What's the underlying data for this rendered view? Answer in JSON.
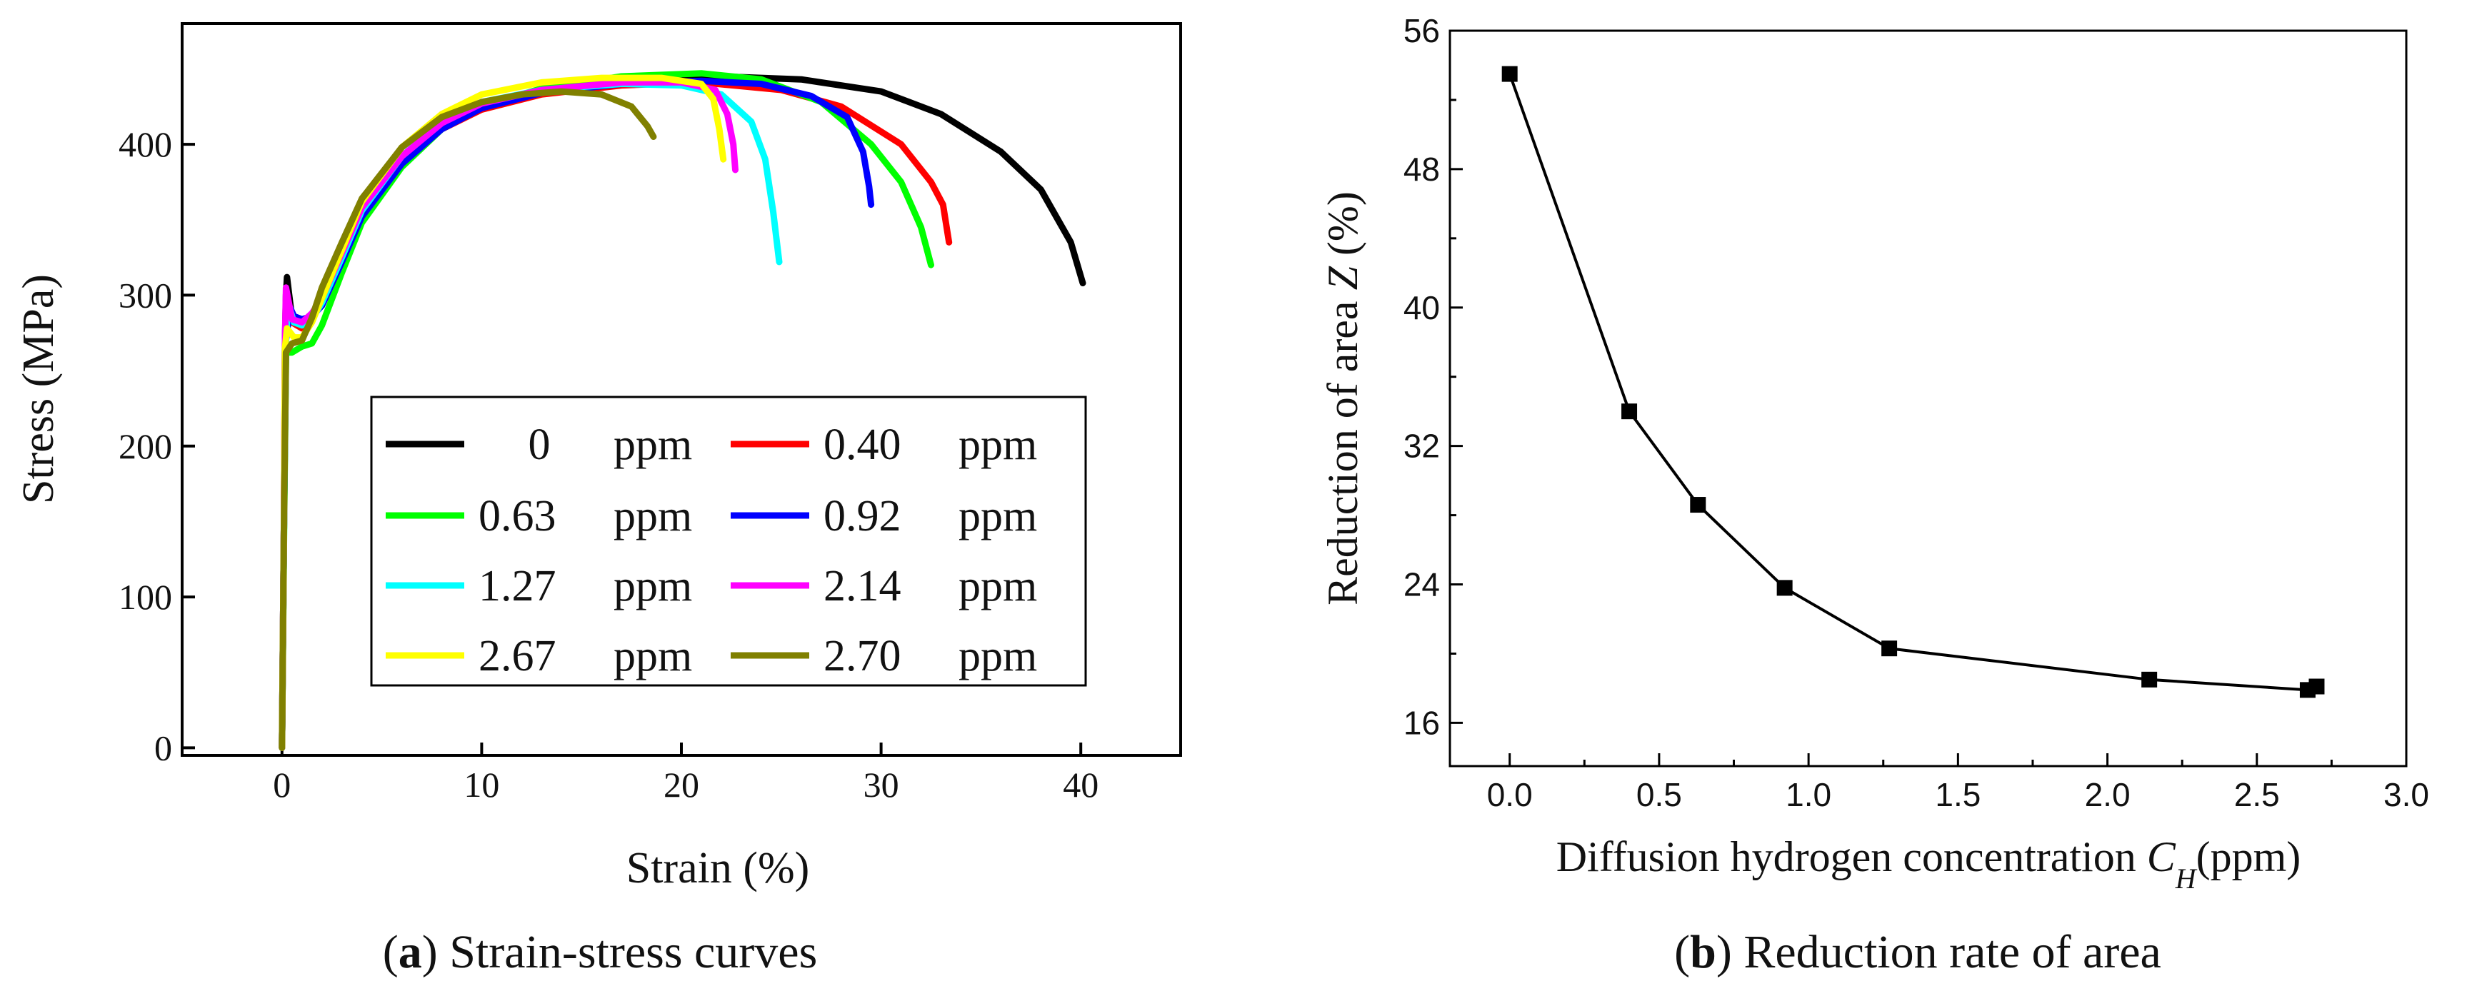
{
  "captions": {
    "a_letter": "a",
    "a_text": " Strain-stress curves",
    "b_letter": "b",
    "b_text": " Reduction rate of area"
  },
  "chart_data": [
    {
      "type": "line",
      "panel": "a",
      "title": "",
      "xlabel": "Strain (%)",
      "ylabel": "Stress (MPa)",
      "xlim": [
        -5,
        45
      ],
      "ylim": [
        -5,
        480
      ],
      "xticks": [
        0,
        10,
        20,
        30,
        40
      ],
      "yticks": [
        0,
        100,
        200,
        300,
        400
      ],
      "xtick_labels": [
        "0",
        "10",
        "20",
        "30",
        "40"
      ],
      "ytick_labels": [
        "0",
        "100",
        "200",
        "300",
        "400"
      ],
      "legend_position": "center-right",
      "series": [
        {
          "name": "0",
          "label_num": "0",
          "label_unit": "ppm",
          "color": "#000000",
          "points": [
            [
              0,
              0
            ],
            [
              0.1,
              150
            ],
            [
              0.15,
              270
            ],
            [
              0.2,
              300
            ],
            [
              0.25,
              312
            ],
            [
              0.5,
              285
            ],
            [
              1,
              280
            ],
            [
              1.5,
              285
            ],
            [
              2,
              295
            ],
            [
              3,
              325
            ],
            [
              4,
              355
            ],
            [
              6,
              390
            ],
            [
              8,
              412
            ],
            [
              10,
              425
            ],
            [
              12,
              433
            ],
            [
              15,
              440
            ],
            [
              18,
              443
            ],
            [
              22,
              445
            ],
            [
              26,
              443
            ],
            [
              30,
              435
            ],
            [
              33,
              420
            ],
            [
              36,
              395
            ],
            [
              38,
              370
            ],
            [
              39.5,
              335
            ],
            [
              40.1,
              308
            ]
          ]
        },
        {
          "name": "0.40",
          "label_num": "0.40",
          "label_unit": "ppm",
          "color": "#ff0000",
          "points": [
            [
              0,
              0
            ],
            [
              0.1,
              150
            ],
            [
              0.15,
              265
            ],
            [
              0.25,
              295
            ],
            [
              0.5,
              282
            ],
            [
              1,
              278
            ],
            [
              1.5,
              285
            ],
            [
              2,
              295
            ],
            [
              3,
              322
            ],
            [
              4,
              352
            ],
            [
              6,
              388
            ],
            [
              8,
              410
            ],
            [
              10,
              423
            ],
            [
              13,
              433
            ],
            [
              17,
              439
            ],
            [
              21,
              441
            ],
            [
              25,
              436
            ],
            [
              28,
              425
            ],
            [
              31,
              400
            ],
            [
              32.5,
              375
            ],
            [
              33.1,
              360
            ],
            [
              33.4,
              335
            ]
          ]
        },
        {
          "name": "0.63",
          "label_num": "0.63",
          "label_unit": "ppm",
          "color": "#00ff00",
          "points": [
            [
              0,
              0
            ],
            [
              0.1,
              140
            ],
            [
              0.2,
              262
            ],
            [
              0.5,
              262
            ],
            [
              1,
              266
            ],
            [
              1.5,
              268
            ],
            [
              2,
              280
            ],
            [
              3,
              315
            ],
            [
              4,
              348
            ],
            [
              6,
              385
            ],
            [
              8,
              410
            ],
            [
              10,
              425
            ],
            [
              13,
              437
            ],
            [
              17,
              445
            ],
            [
              21,
              447
            ],
            [
              24,
              443
            ],
            [
              27,
              428
            ],
            [
              29.5,
              400
            ],
            [
              31,
              375
            ],
            [
              32,
              345
            ],
            [
              32.5,
              320
            ]
          ]
        },
        {
          "name": "0.92",
          "label_num": "0.92",
          "label_unit": "ppm",
          "color": "#0000ff",
          "points": [
            [
              0,
              0
            ],
            [
              0.1,
              150
            ],
            [
              0.2,
              270
            ],
            [
              0.4,
              292
            ],
            [
              0.6,
              286
            ],
            [
              1,
              284
            ],
            [
              1.5,
              286
            ],
            [
              2,
              293
            ],
            [
              3,
              322
            ],
            [
              4,
              352
            ],
            [
              6,
              387
            ],
            [
              8,
              410
            ],
            [
              10,
              424
            ],
            [
              13,
              434
            ],
            [
              17,
              440
            ],
            [
              21,
              442
            ],
            [
              24,
              440
            ],
            [
              26.5,
              432
            ],
            [
              28.3,
              418
            ],
            [
              29.1,
              395
            ],
            [
              29.4,
              372
            ],
            [
              29.5,
              360
            ]
          ]
        },
        {
          "name": "1.27",
          "label_num": "1.27",
          "label_unit": "ppm",
          "color": "#00ffff",
          "points": [
            [
              0,
              0
            ],
            [
              0.1,
              150
            ],
            [
              0.2,
              270
            ],
            [
              0.3,
              295
            ],
            [
              0.6,
              282
            ],
            [
              1,
              280
            ],
            [
              1.5,
              284
            ],
            [
              2,
              295
            ],
            [
              3,
              325
            ],
            [
              4,
              356
            ],
            [
              6,
              392
            ],
            [
              8,
              415
            ],
            [
              10,
              428
            ],
            [
              13,
              436
            ],
            [
              17,
              440
            ],
            [
              20,
              439
            ],
            [
              22,
              433
            ],
            [
              23.5,
              415
            ],
            [
              24.2,
              390
            ],
            [
              24.6,
              355
            ],
            [
              24.9,
              322
            ]
          ]
        },
        {
          "name": "2.14",
          "label_num": "2.14",
          "label_unit": "ppm",
          "color": "#ff00ff",
          "points": [
            [
              0,
              0
            ],
            [
              0.1,
              150
            ],
            [
              0.15,
              270
            ],
            [
              0.2,
              305
            ],
            [
              0.5,
              284
            ],
            [
              1,
              282
            ],
            [
              1.5,
              288
            ],
            [
              2,
              298
            ],
            [
              3,
              328
            ],
            [
              4,
              358
            ],
            [
              6,
              392
            ],
            [
              8,
              414
            ],
            [
              10,
              427
            ],
            [
              13,
              436
            ],
            [
              17,
              441
            ],
            [
              20,
              441
            ],
            [
              21.7,
              436
            ],
            [
              22.3,
              420
            ],
            [
              22.6,
              400
            ],
            [
              22.7,
              383
            ]
          ]
        },
        {
          "name": "2.67",
          "label_num": "2.67",
          "label_unit": "ppm",
          "color": "#ffff00",
          "points": [
            [
              0,
              0
            ],
            [
              0.1,
              150
            ],
            [
              0.15,
              265
            ],
            [
              0.25,
              278
            ],
            [
              0.6,
              272
            ],
            [
              1,
              272
            ],
            [
              1.5,
              282
            ],
            [
              2,
              298
            ],
            [
              3,
              330
            ],
            [
              4,
              362
            ],
            [
              6,
              398
            ],
            [
              8,
              420
            ],
            [
              10,
              433
            ],
            [
              13,
              441
            ],
            [
              16,
              444
            ],
            [
              19,
              444
            ],
            [
              21,
              440
            ],
            [
              21.6,
              430
            ],
            [
              21.9,
              410
            ],
            [
              22.1,
              390
            ]
          ]
        },
        {
          "name": "2.70",
          "label_num": "2.70",
          "label_unit": "ppm",
          "color": "#808000",
          "points": [
            [
              0,
              0
            ],
            [
              0.1,
              150
            ],
            [
              0.2,
              262
            ],
            [
              0.5,
              268
            ],
            [
              1,
              270
            ],
            [
              1.5,
              285
            ],
            [
              2,
              305
            ],
            [
              3,
              335
            ],
            [
              4,
              364
            ],
            [
              6,
              398
            ],
            [
              8,
              418
            ],
            [
              10,
              428
            ],
            [
              12,
              433
            ],
            [
              14,
              435
            ],
            [
              16,
              433
            ],
            [
              17.5,
              425
            ],
            [
              18.3,
              412
            ],
            [
              18.6,
              405
            ]
          ]
        }
      ]
    },
    {
      "type": "line",
      "panel": "b",
      "title": "",
      "xlabel_prefix": "Diffusion hydrogen concentration ",
      "xlabel_symbol": "C",
      "xlabel_subscript": "H",
      "xlabel_suffix": "(ppm)",
      "ylabel_prefix": "Reduction of area  ",
      "ylabel_symbol": "Z",
      "ylabel_suffix": " (%)",
      "xlim": [
        -0.2,
        3.0
      ],
      "ylim": [
        13.5,
        56
      ],
      "xticks": [
        0.0,
        0.5,
        1.0,
        1.5,
        2.0,
        2.5,
        3.0
      ],
      "yticks": [
        16,
        24,
        32,
        40,
        48,
        56
      ],
      "xtick_labels": [
        "0.0",
        "0.5",
        "1.0",
        "1.5",
        "2.0",
        "2.5",
        "3.0"
      ],
      "ytick_labels": [
        "16",
        "24",
        "32",
        "40",
        "48",
        "56"
      ],
      "series": [
        {
          "name": "Z",
          "color": "#000000",
          "x": [
            0.0,
            0.4,
            0.63,
            0.92,
            1.27,
            2.14,
            2.67,
            2.7
          ],
          "y": [
            53.5,
            34.0,
            28.6,
            23.8,
            20.3,
            18.5,
            17.9,
            18.1
          ]
        }
      ]
    }
  ]
}
